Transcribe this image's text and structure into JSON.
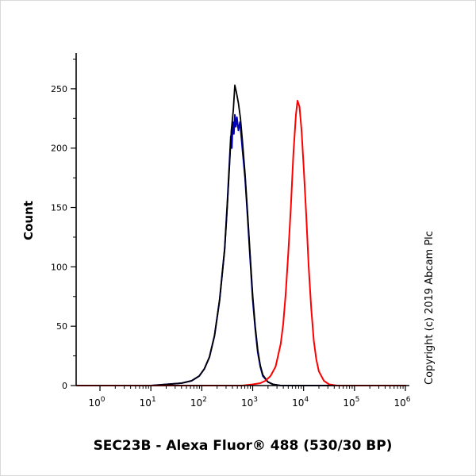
{
  "copyright": "Copyright (c) 2019 Abcam Plc",
  "chart_data": {
    "type": "line",
    "title": "",
    "xlabel": "SEC23B - Alexa Fluor® 488 (530/30 BP)",
    "ylabel": "Count",
    "x_scale": "log10",
    "x_range_log10": [
      0,
      6
    ],
    "ylim": [
      0,
      280
    ],
    "y_ticks": [
      0,
      50,
      100,
      150,
      200,
      250
    ],
    "y_minor_step": 25,
    "x_tick_exponents": [
      0,
      1,
      2,
      3,
      4,
      5,
      6
    ],
    "grid": false,
    "legend": "none",
    "colors": {
      "black_curve": "#000000",
      "blue_curve": "#0000bb",
      "red_curve": "#ff0000",
      "axis": "#000000"
    },
    "series": [
      {
        "name": "blue-curve",
        "color": "#0000bb",
        "points_log10x_count": [
          [
            -0.45,
            0
          ],
          [
            0.5,
            0
          ],
          [
            1.0,
            0
          ],
          [
            1.3,
            1
          ],
          [
            1.6,
            2
          ],
          [
            1.8,
            4
          ],
          [
            1.95,
            8
          ],
          [
            2.05,
            14
          ],
          [
            2.15,
            24
          ],
          [
            2.25,
            42
          ],
          [
            2.35,
            72
          ],
          [
            2.45,
            115
          ],
          [
            2.5,
            152
          ],
          [
            2.54,
            185
          ],
          [
            2.57,
            210
          ],
          [
            2.59,
            200
          ],
          [
            2.61,
            222
          ],
          [
            2.63,
            212
          ],
          [
            2.65,
            228
          ],
          [
            2.67,
            218
          ],
          [
            2.69,
            226
          ],
          [
            2.72,
            215
          ],
          [
            2.75,
            222
          ],
          [
            2.78,
            208
          ],
          [
            2.8,
            198
          ],
          [
            2.85,
            175
          ],
          [
            2.9,
            142
          ],
          [
            2.95,
            107
          ],
          [
            3.0,
            73
          ],
          [
            3.05,
            48
          ],
          [
            3.1,
            28
          ],
          [
            3.15,
            16
          ],
          [
            3.2,
            8
          ],
          [
            3.3,
            3
          ],
          [
            3.4,
            1
          ],
          [
            3.55,
            0
          ],
          [
            6.0,
            0
          ]
        ]
      },
      {
        "name": "black-curve",
        "color": "#000000",
        "points_log10x_count": [
          [
            -0.45,
            0
          ],
          [
            0.5,
            0
          ],
          [
            1.0,
            0
          ],
          [
            1.3,
            1
          ],
          [
            1.6,
            2
          ],
          [
            1.8,
            4
          ],
          [
            1.95,
            8
          ],
          [
            2.05,
            14
          ],
          [
            2.15,
            24
          ],
          [
            2.25,
            42
          ],
          [
            2.35,
            72
          ],
          [
            2.45,
            115
          ],
          [
            2.5,
            150
          ],
          [
            2.55,
            190
          ],
          [
            2.58,
            215
          ],
          [
            2.62,
            232
          ],
          [
            2.65,
            253
          ],
          [
            2.68,
            247
          ],
          [
            2.72,
            238
          ],
          [
            2.76,
            225
          ],
          [
            2.8,
            205
          ],
          [
            2.85,
            178
          ],
          [
            2.9,
            145
          ],
          [
            2.95,
            110
          ],
          [
            3.0,
            76
          ],
          [
            3.05,
            50
          ],
          [
            3.1,
            30
          ],
          [
            3.15,
            17
          ],
          [
            3.2,
            9
          ],
          [
            3.3,
            3
          ],
          [
            3.4,
            1
          ],
          [
            3.55,
            0
          ],
          [
            4.5,
            0
          ],
          [
            6.0,
            0
          ]
        ]
      },
      {
        "name": "red-curve",
        "color": "#ff0000",
        "points_log10x_count": [
          [
            -0.45,
            0
          ],
          [
            1.0,
            0
          ],
          [
            2.0,
            0
          ],
          [
            2.8,
            0
          ],
          [
            3.0,
            1
          ],
          [
            3.15,
            2
          ],
          [
            3.25,
            4
          ],
          [
            3.35,
            8
          ],
          [
            3.45,
            16
          ],
          [
            3.55,
            35
          ],
          [
            3.6,
            52
          ],
          [
            3.65,
            78
          ],
          [
            3.7,
            112
          ],
          [
            3.75,
            150
          ],
          [
            3.8,
            195
          ],
          [
            3.85,
            228
          ],
          [
            3.88,
            240
          ],
          [
            3.92,
            235
          ],
          [
            3.96,
            215
          ],
          [
            4.0,
            185
          ],
          [
            4.05,
            145
          ],
          [
            4.1,
            100
          ],
          [
            4.15,
            65
          ],
          [
            4.2,
            38
          ],
          [
            4.25,
            22
          ],
          [
            4.3,
            12
          ],
          [
            4.4,
            4
          ],
          [
            4.5,
            1
          ],
          [
            4.65,
            0
          ],
          [
            5.5,
            0
          ],
          [
            6.0,
            0
          ]
        ]
      }
    ]
  }
}
